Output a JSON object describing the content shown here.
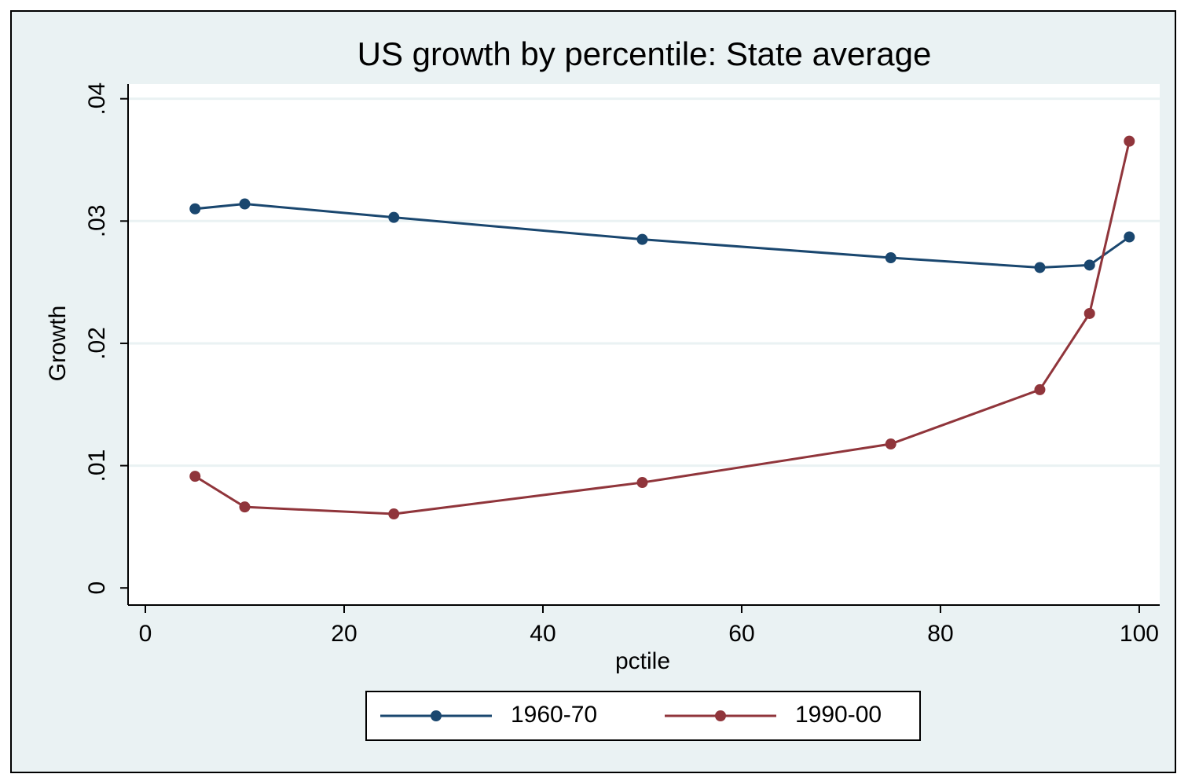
{
  "chart_data": {
    "type": "line",
    "title": "US growth by percentile: State average",
    "xlabel": "pctile",
    "ylabel": "Growth",
    "x": [
      5,
      10,
      25,
      50,
      75,
      90,
      95,
      99
    ],
    "series": [
      {
        "name": "1960-70",
        "color": "#1a476f",
        "values": [
          0.031,
          0.0314,
          0.0303,
          0.0285,
          0.027,
          0.0262,
          0.0264,
          0.0287
        ]
      },
      {
        "name": "1990-00",
        "color": "#90353b",
        "values": [
          0.00913,
          0.00662,
          0.00605,
          0.00862,
          0.01177,
          0.01621,
          0.02244,
          0.03653
        ]
      }
    ],
    "xlim": [
      -1.74,
      102.06
    ],
    "xticks": [
      0,
      20,
      40,
      60,
      80,
      100
    ],
    "ylim": [
      -0.0014,
      0.0412
    ],
    "yticks": [
      0,
      {
        "value": 0.01,
        "label": ".01"
      },
      {
        "value": 0.02,
        "label": ".02"
      },
      {
        "value": 0.03,
        "label": ".03"
      },
      {
        "value": 0.04,
        "label": ".04"
      }
    ],
    "grid": true,
    "legend": "bottom"
  }
}
